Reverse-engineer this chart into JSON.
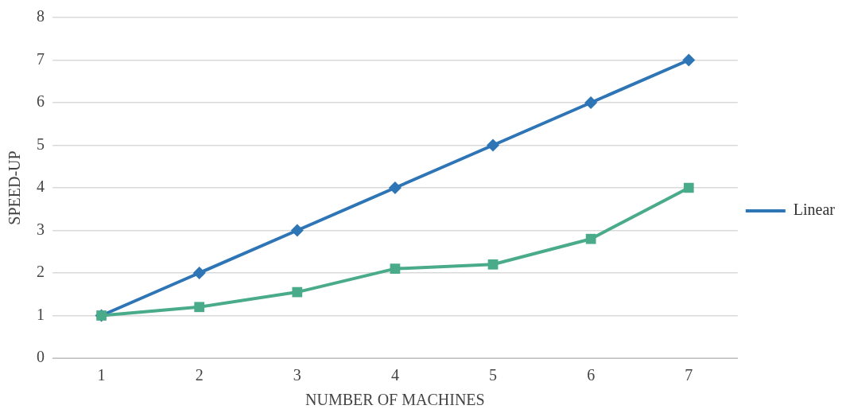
{
  "chart_data": {
    "type": "line",
    "xlabel": "NUMBER OF MACHINES",
    "ylabel": "SPEED-UP",
    "categories": [
      "1",
      "2",
      "3",
      "4",
      "5",
      "6",
      "7"
    ],
    "series": [
      {
        "name": "Linear",
        "color": "#2e75b6",
        "marker": "diamond",
        "values": [
          1,
          2,
          3,
          4,
          5,
          6,
          7
        ]
      },
      {
        "color": "#4aab8a",
        "marker": "square",
        "values": [
          1,
          1.2,
          1.55,
          2.1,
          2.2,
          2.8,
          4
        ]
      }
    ],
    "ylim": [
      0,
      8
    ],
    "yticks": [
      0,
      1,
      2,
      3,
      4,
      5,
      6,
      7,
      8
    ],
    "grid": "y",
    "legend": "right"
  }
}
